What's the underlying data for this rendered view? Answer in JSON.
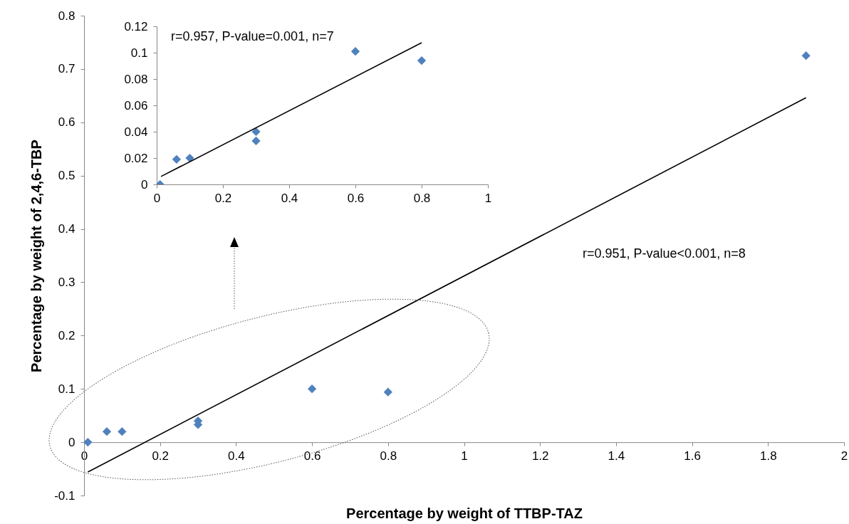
{
  "chart_data": [
    {
      "type": "scatter",
      "xlabel": "Percentage by weight of TTBP-TAZ",
      "ylabel": "Percentage by weight  of 2,4,6-TBP",
      "xlim": [
        0,
        2
      ],
      "xticks": [
        0,
        0.2,
        0.4,
        0.6,
        0.8,
        1,
        1.2,
        1.4,
        1.6,
        1.8,
        2
      ],
      "ylim": [
        -0.1,
        0.8
      ],
      "yticks": [
        -0.1,
        0,
        0.1,
        0.2,
        0.3,
        0.4,
        0.5,
        0.6,
        0.7,
        0.8
      ],
      "grid": false,
      "annotations": [
        "r=0.951, P-value<0.001, n=8"
      ],
      "series": [
        {
          "type": "scatter",
          "marker": "diamond",
          "color": "#4f81bd",
          "x": [
            0.01,
            0.06,
            0.1,
            0.3,
            0.3,
            0.6,
            0.8,
            1.9
          ],
          "values": [
            0,
            0.02,
            0.02,
            0.04,
            0.033,
            0.1,
            0.094,
            0.725
          ]
        },
        {
          "type": "line",
          "color": "#000000",
          "x": [
            0.01,
            1.9
          ],
          "values": [
            -0.056,
            0.646
          ]
        }
      ]
    },
    {
      "type": "scatter",
      "xlim": [
        0,
        1
      ],
      "xticks": [
        0,
        0.2,
        0.4,
        0.6,
        0.8,
        1
      ],
      "ylim": [
        0,
        0.12
      ],
      "yticks": [
        0,
        0.02,
        0.04,
        0.06,
        0.08,
        0.1,
        0.12
      ],
      "grid": false,
      "annotations": [
        "r=0.957, P-value=0.001, n=7"
      ],
      "series": [
        {
          "type": "scatter",
          "marker": "diamond",
          "color": "#4f81bd",
          "x": [
            0.01,
            0.06,
            0.1,
            0.3,
            0.3,
            0.6,
            0.8
          ],
          "values": [
            0,
            0.019,
            0.02,
            0.04,
            0.033,
            0.101,
            0.094
          ]
        },
        {
          "type": "line",
          "color": "#000000",
          "x": [
            0.013,
            0.8
          ],
          "values": [
            0.006,
            0.1076
          ]
        }
      ]
    }
  ]
}
